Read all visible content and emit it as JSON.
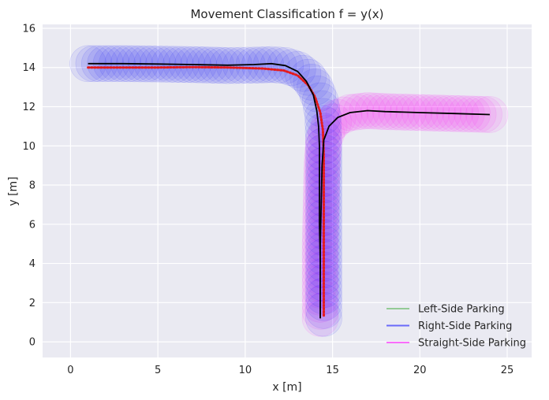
{
  "chart_data": {
    "type": "line",
    "title": "Movement Classification f = y(x)",
    "xlabel": "x [m]",
    "ylabel": "y [m]",
    "xlim": [
      -1.6,
      26.4
    ],
    "ylim": [
      -0.8,
      16.2
    ],
    "xticks": [
      0,
      5,
      10,
      15,
      20,
      25
    ],
    "yticks": [
      0,
      2,
      4,
      6,
      8,
      10,
      12,
      14,
      16
    ],
    "grid": true,
    "legend_position": "lower-right",
    "series": [
      {
        "name": "Left-Side Parking",
        "color": "#4daf4a",
        "points": []
      },
      {
        "name": "Right-Side Parking",
        "color": "#0000ff",
        "points": [
          [
            1.0,
            14.2
          ],
          [
            3,
            14.2
          ],
          [
            5,
            14.18
          ],
          [
            7,
            14.15
          ],
          [
            9,
            14.1
          ],
          [
            10.5,
            14.12
          ],
          [
            11.5,
            14.15
          ],
          [
            12.3,
            14.1
          ],
          [
            13.0,
            13.9
          ],
          [
            13.6,
            13.5
          ],
          [
            14.0,
            13.0
          ],
          [
            14.3,
            12.3
          ],
          [
            14.45,
            11.5
          ],
          [
            14.5,
            10
          ],
          [
            14.5,
            8
          ],
          [
            14.5,
            6
          ],
          [
            14.5,
            4
          ],
          [
            14.5,
            2
          ],
          [
            14.5,
            1.2
          ]
        ]
      },
      {
        "name": "Straight-Side Parking",
        "color": "#ff00ff",
        "points": [
          [
            14.3,
            1.2
          ],
          [
            14.3,
            3
          ],
          [
            14.3,
            5
          ],
          [
            14.35,
            7
          ],
          [
            14.4,
            9
          ],
          [
            14.5,
            10.3
          ],
          [
            14.8,
            11.0
          ],
          [
            15.3,
            11.45
          ],
          [
            16.0,
            11.7
          ],
          [
            17.0,
            11.8
          ],
          [
            18.0,
            11.75
          ],
          [
            20,
            11.7
          ],
          [
            22,
            11.65
          ],
          [
            24,
            11.6
          ]
        ]
      }
    ],
    "trajectory_left": [
      [
        1.0,
        14.2
      ],
      [
        3,
        14.2
      ],
      [
        5,
        14.18
      ],
      [
        7,
        14.15
      ],
      [
        9,
        14.12
      ],
      [
        10.5,
        14.15
      ],
      [
        11.5,
        14.2
      ],
      [
        12.3,
        14.1
      ],
      [
        13.0,
        13.8
      ],
      [
        13.5,
        13.3
      ],
      [
        13.9,
        12.6
      ],
      [
        14.1,
        11.8
      ],
      [
        14.2,
        11
      ],
      [
        14.25,
        10
      ],
      [
        14.25,
        8
      ],
      [
        14.25,
        6
      ],
      [
        14.3,
        4
      ],
      [
        14.3,
        2
      ],
      [
        14.3,
        1.2
      ]
    ],
    "trajectory_right": [
      [
        14.3,
        1.2
      ],
      [
        14.3,
        3
      ],
      [
        14.3,
        5
      ],
      [
        14.35,
        7
      ],
      [
        14.4,
        9
      ],
      [
        14.5,
        10.3
      ],
      [
        14.8,
        11.0
      ],
      [
        15.3,
        11.45
      ],
      [
        16.0,
        11.7
      ],
      [
        17.0,
        11.8
      ],
      [
        18.0,
        11.75
      ],
      [
        20,
        11.7
      ],
      [
        22,
        11.65
      ],
      [
        24,
        11.6
      ]
    ],
    "reference_path": [
      [
        1.0,
        14.0
      ],
      [
        3,
        14.0
      ],
      [
        5,
        14.0
      ],
      [
        7,
        14.02
      ],
      [
        9,
        14.0
      ],
      [
        11,
        13.95
      ],
      [
        12.2,
        13.85
      ],
      [
        13.0,
        13.6
      ],
      [
        13.6,
        13.1
      ],
      [
        14.0,
        12.5
      ],
      [
        14.3,
        11.7
      ],
      [
        14.45,
        10.8
      ],
      [
        14.5,
        9.5
      ],
      [
        14.5,
        8
      ],
      [
        14.5,
        6
      ],
      [
        14.5,
        4
      ],
      [
        14.5,
        2
      ],
      [
        14.5,
        1.3
      ]
    ]
  }
}
